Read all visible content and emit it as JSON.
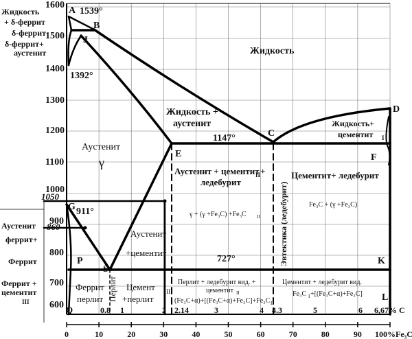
{
  "y_ticks": [
    "1600",
    "1500",
    "1400",
    "1300",
    "1200",
    "1100",
    "1000",
    "900",
    "800",
    "700",
    "600"
  ],
  "x_pct_ticks": [
    "0",
    "10",
    "20",
    "30",
    "40",
    "50",
    "60",
    "70",
    "80",
    "90",
    "100%Fe₃C"
  ],
  "x_c_ticks": [
    "Q",
    "0.8",
    "1",
    "2",
    "2.14",
    "3",
    "4",
    "4.3",
    "5",
    "6",
    "6,67% C"
  ],
  "points": {
    "A": "A",
    "B": "B",
    "J": "J",
    "C": "C",
    "D": "D",
    "E": "E",
    "F": "F",
    "G": "G",
    "P": "P",
    "S": "S",
    "K": "K",
    "L": "L",
    "Q": "Q"
  },
  "temps": {
    "t1539": "1539°",
    "t1392": "1392°",
    "t1147": "1147°",
    "t911": "911°",
    "t727": "727°",
    "t1050": "1050",
    "t860": "860"
  },
  "left_labels": {
    "l1a": "Жидкость",
    "l1b": "+ δ-феррит",
    "l2": "δ-феррит",
    "l3a": "δ-феррит+",
    "l3b": "аустенит",
    "l4a": "Аустенит",
    "l4b": "феррит+",
    "l5": "Феррит",
    "l6a": "Феррит +",
    "l6b": "цементит",
    "l6c": "III"
  },
  "regions": {
    "liquid": "Жидкость",
    "liq_aus_a": "Жидкость +",
    "liq_aus_b": "аустенит",
    "liq_cem_a": "Жидкость+",
    "liq_cem_b": "цементит",
    "liq_cem_sub": "I",
    "aus": "Аустенит",
    "gamma": "γ",
    "aus_cem_led_a": "Аустенит + цементит",
    "aus_cem_led_sub": "II",
    "aus_cem_led_plus": " +",
    "aus_cem_led_b": "ледебурит",
    "aus_formula": "γ + (γ +Fe₃C) +Fe₃C",
    "aus_formula_sub": "II",
    "eutectic": "Эвтектика (ледебурит)",
    "cem_led": "Цементит+ ледебурит",
    "cem_formula": "Fe₃C  +  (γ +Fe₃C)",
    "aus2": "Аустенит",
    "aus2_cem": "+цементит",
    "ferr_perl_a": "Феррит",
    "ferr_perl_b": "перлит",
    "perlite_v": "Перлит",
    "cem_perl_a": "Цемент",
    "cem_perl_b": "+перлит",
    "cem_perl_sub": "II",
    "perl_led_a": "Перлит + ледебурит вид. +",
    "perl_led_b": "цементит",
    "perl_led_b_sub": "II",
    "perl_formula": "(Fe₃C+α)+[(Fe₃C+α)+Fe₃C]+Fe₃C",
    "perl_formula_sub": "II",
    "cem_led2_a": "Цементит + ледебурит вид.",
    "cem_led2_b": "Fe₃C",
    "cem_led2_b_sub": "I",
    "cem_led2_c": "+[(Fe₃C+α)+Fe₃C]"
  }
}
